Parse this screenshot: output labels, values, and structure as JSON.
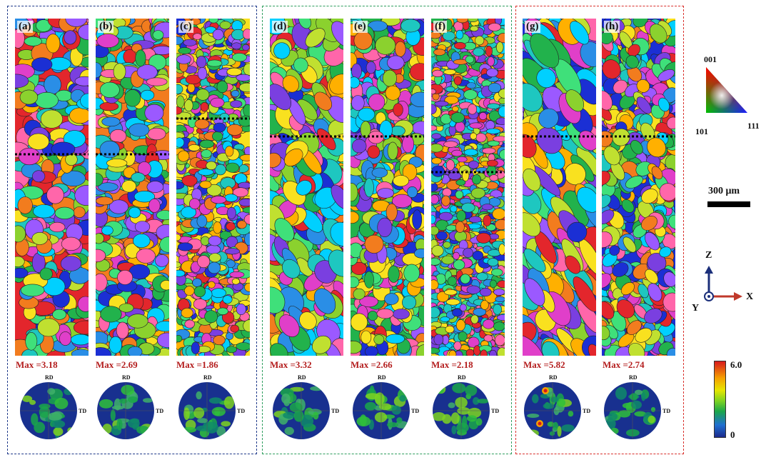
{
  "panels": [
    {
      "label": "(a)",
      "max": "Max =3.18",
      "seed": 11
    },
    {
      "label": "(b)",
      "max": "Max =2.69",
      "seed": 23
    },
    {
      "label": "(c)",
      "max": "Max =1.86",
      "seed": 37
    },
    {
      "label": "(d)",
      "max": "Max =3.32",
      "seed": 41
    },
    {
      "label": "(e)",
      "max": "Max =2.66",
      "seed": 53
    },
    {
      "label": "(f)",
      "max": "Max =2.18",
      "seed": 67
    },
    {
      "label": "(g)",
      "max": "Max =5.82",
      "seed": 79
    },
    {
      "label": "(h)",
      "max": "Max =2.74",
      "seed": 97
    }
  ],
  "pole_figure_labels": {
    "rd": "RD",
    "td": "TD"
  },
  "ipf_key": {
    "top": "001",
    "left": "101",
    "right": "111"
  },
  "scale_bar": {
    "label": "300 μm"
  },
  "axes": {
    "z": "Z",
    "x": "X",
    "y": "Y"
  },
  "color_bar": {
    "max": "6.0",
    "min": "0"
  },
  "colors": {
    "group1_border": "#1f3a8a",
    "group2_border": "#2e9e5e",
    "group3_border": "#d9302c",
    "max_text": "#b41e1e",
    "grain_palette": [
      "#e3262c",
      "#f27c1e",
      "#f9e11f",
      "#8bd12e",
      "#22b24c",
      "#1ec7c0",
      "#2a8ee6",
      "#1b2fd4",
      "#7a3fe0",
      "#e03fc9",
      "#ff66aa",
      "#3fe07a",
      "#c0e030",
      "#ffb000",
      "#00d0ff",
      "#9b59ff"
    ]
  }
}
